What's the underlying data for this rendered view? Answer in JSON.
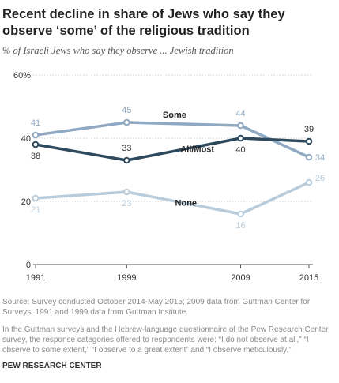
{
  "title": "Recent decline in share of Jews who say they observe ‘some’ of the religious tradition",
  "subtitle": "% of Israeli Jews who say they observe ... Jewish tradition",
  "source": "Source: Survey conducted October 2014-May 2015; 2009 data from Guttman Center for Surveys, 1991 and 1999 data from Guttman Institute.",
  "note": "In the Guttman surveys and the Hebrew-language questionnaire of the Pew Research Center survey, the response categories offered to respondents were: “I do not observe at all,” “I observe to some extent,” “I observe to a great extent” and “I observe meticulously.”",
  "org": "PEW RESEARCH CENTER",
  "colors": {
    "some": "#8fa9c2",
    "all_most": "#2e4a5e",
    "none": "#b8ccdb"
  },
  "chart_data": {
    "type": "line",
    "x": [
      1991,
      1999,
      2009,
      2015
    ],
    "x_tick_labels": [
      "1991",
      "1999",
      "2009",
      "2015"
    ],
    "ylim": [
      0,
      60
    ],
    "y_ticks": [
      0,
      20,
      40,
      60
    ],
    "y_tick_labels": [
      "0",
      "20",
      "40",
      "60%"
    ],
    "grid": true,
    "series": [
      {
        "key": "some",
        "name": "Some",
        "values": [
          41,
          45,
          44,
          34
        ],
        "labels": [
          "41",
          "45",
          "44",
          "34"
        ]
      },
      {
        "key": "all_most",
        "name": "All/Most",
        "values": [
          38,
          33,
          40,
          39
        ],
        "labels": [
          "38",
          "33",
          "40",
          "39"
        ]
      },
      {
        "key": "none",
        "name": "None",
        "values": [
          21,
          23,
          16,
          26
        ],
        "labels": [
          "21",
          "23",
          "16",
          "26"
        ]
      }
    ]
  }
}
